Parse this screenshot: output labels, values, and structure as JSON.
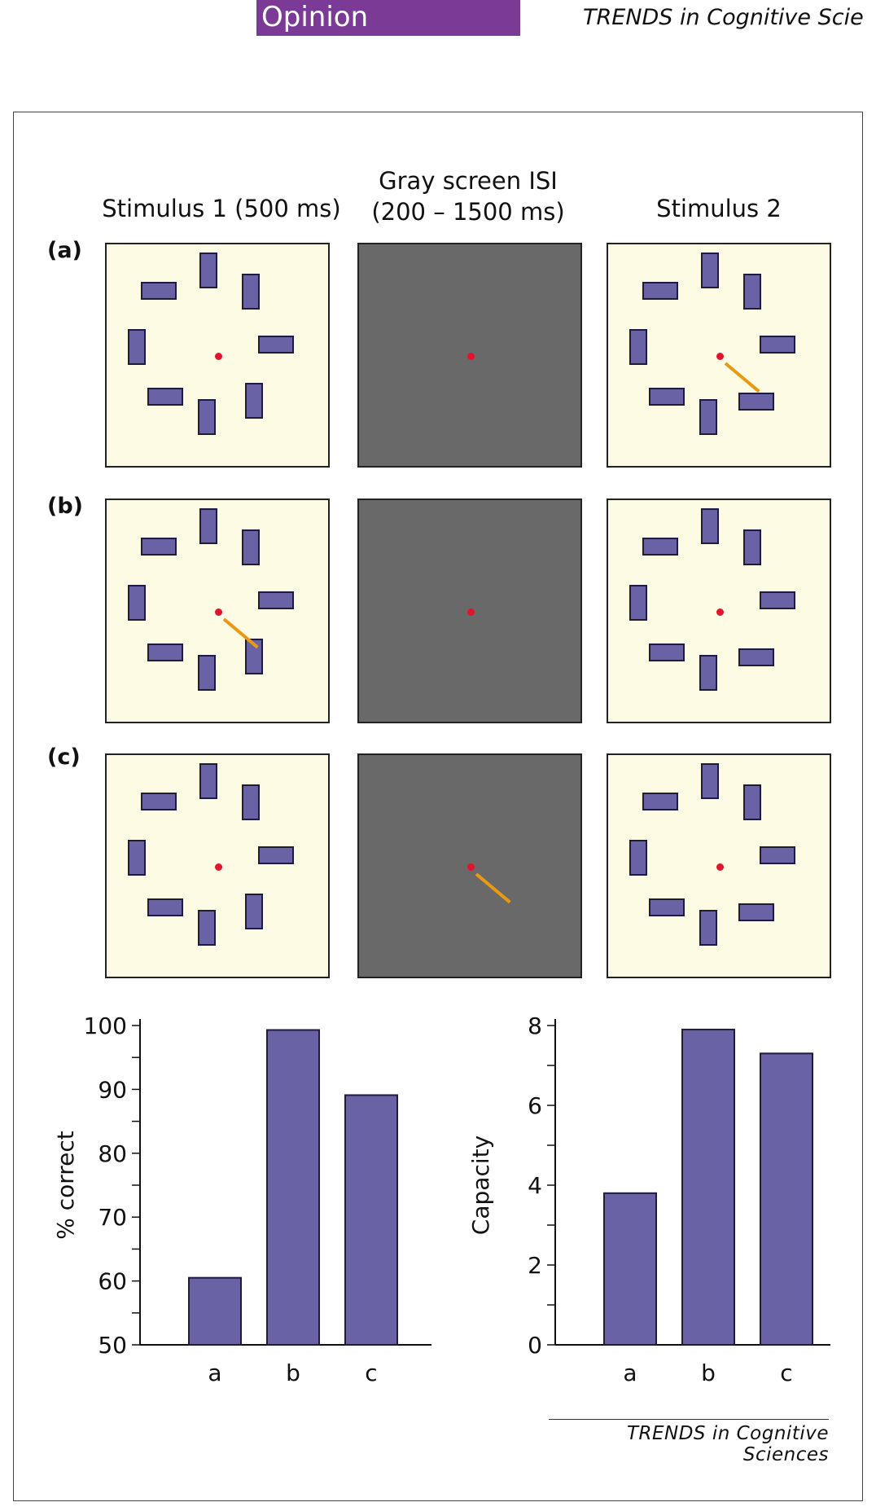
{
  "header": {
    "section_label": "Opinion",
    "journal": "TRENDS in Cognitive Scie"
  },
  "figure": {
    "columns": {
      "col1": "Stimulus 1 (500 ms)",
      "col2_line1": "Gray screen ISI",
      "col2_line2": "(200 – 1500 ms)",
      "col3": "Stimulus 2"
    },
    "rows": [
      {
        "label": "(a)",
        "cue_panel": "stimulus-2"
      },
      {
        "label": "(b)",
        "cue_panel": "stimulus-1"
      },
      {
        "label": "(c)",
        "cue_panel": "isi"
      }
    ],
    "colors": {
      "background_panel": "#fdfbe3",
      "isi_panel": "#696969",
      "rectangles": "#6963a6",
      "fixation": "#e2142d",
      "cue_line": "#e89a12"
    },
    "credit": "TRENDS in Cognitive Sciences"
  },
  "chart_data": [
    {
      "type": "bar",
      "categories": [
        "a",
        "b",
        "c"
      ],
      "values": [
        60.5,
        99.3,
        89.1
      ],
      "ylabel": "% correct",
      "ylim": [
        50,
        100
      ],
      "yticks": [
        50,
        60,
        70,
        80,
        90,
        100
      ],
      "color": "#6963a6"
    },
    {
      "type": "bar",
      "categories": [
        "a",
        "b",
        "c"
      ],
      "values": [
        3.8,
        7.9,
        7.3
      ],
      "ylabel": "Capacity",
      "ylim": [
        0,
        8
      ],
      "yticks": [
        0,
        2,
        4,
        6,
        8
      ],
      "color": "#6963a6"
    }
  ]
}
